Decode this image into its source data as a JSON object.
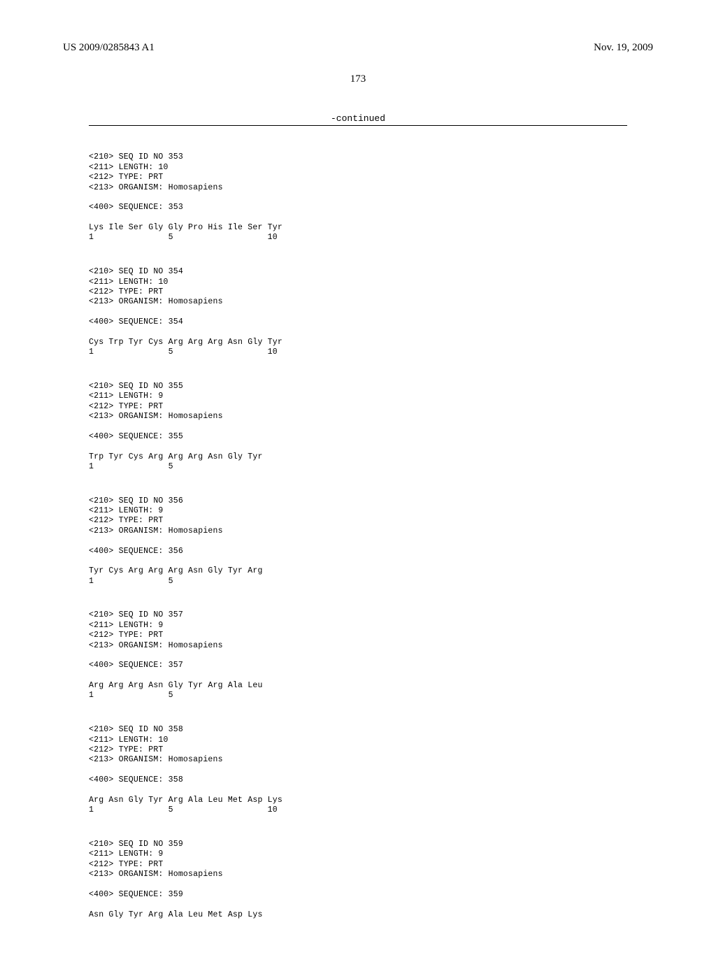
{
  "header": {
    "publication_number": "US 2009/0285843 A1",
    "date": "Nov. 19, 2009"
  },
  "page_number": "173",
  "continued_label": "-continued",
  "sequences": [
    {
      "meta": [
        "<210> SEQ ID NO 353",
        "<211> LENGTH: 10",
        "<212> TYPE: PRT",
        "<213> ORGANISM: Homosapiens"
      ],
      "seq_header": "<400> SEQUENCE: 353",
      "residues": "Lys Ile Ser Gly Gly Pro His Ile Ser Tyr",
      "positions": "1               5                   10"
    },
    {
      "meta": [
        "<210> SEQ ID NO 354",
        "<211> LENGTH: 10",
        "<212> TYPE: PRT",
        "<213> ORGANISM: Homosapiens"
      ],
      "seq_header": "<400> SEQUENCE: 354",
      "residues": "Cys Trp Tyr Cys Arg Arg Arg Asn Gly Tyr",
      "positions": "1               5                   10"
    },
    {
      "meta": [
        "<210> SEQ ID NO 355",
        "<211> LENGTH: 9",
        "<212> TYPE: PRT",
        "<213> ORGANISM: Homosapiens"
      ],
      "seq_header": "<400> SEQUENCE: 355",
      "residues": "Trp Tyr Cys Arg Arg Arg Asn Gly Tyr",
      "positions": "1               5"
    },
    {
      "meta": [
        "<210> SEQ ID NO 356",
        "<211> LENGTH: 9",
        "<212> TYPE: PRT",
        "<213> ORGANISM: Homosapiens"
      ],
      "seq_header": "<400> SEQUENCE: 356",
      "residues": "Tyr Cys Arg Arg Arg Asn Gly Tyr Arg",
      "positions": "1               5"
    },
    {
      "meta": [
        "<210> SEQ ID NO 357",
        "<211> LENGTH: 9",
        "<212> TYPE: PRT",
        "<213> ORGANISM: Homosapiens"
      ],
      "seq_header": "<400> SEQUENCE: 357",
      "residues": "Arg Arg Arg Asn Gly Tyr Arg Ala Leu",
      "positions": "1               5"
    },
    {
      "meta": [
        "<210> SEQ ID NO 358",
        "<211> LENGTH: 10",
        "<212> TYPE: PRT",
        "<213> ORGANISM: Homosapiens"
      ],
      "seq_header": "<400> SEQUENCE: 358",
      "residues": "Arg Asn Gly Tyr Arg Ala Leu Met Asp Lys",
      "positions": "1               5                   10"
    },
    {
      "meta": [
        "<210> SEQ ID NO 359",
        "<211> LENGTH: 9",
        "<212> TYPE: PRT",
        "<213> ORGANISM: Homosapiens"
      ],
      "seq_header": "<400> SEQUENCE: 359",
      "residues": "Asn Gly Tyr Arg Ala Leu Met Asp Lys",
      "positions": null
    }
  ]
}
